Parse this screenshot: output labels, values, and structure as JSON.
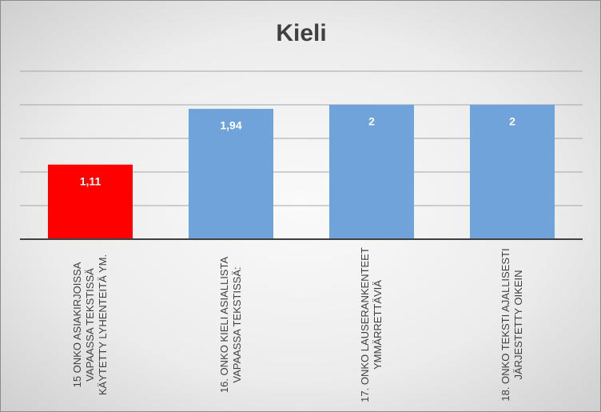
{
  "chart_data": {
    "type": "bar",
    "title": "Kieli",
    "categories": [
      "15 ONKO ASIAKIRJOISSA VAPAASSA TEKSTISSÄ KÄYTETTY LYHENTEITÄ YM.",
      "16. ONKO KIELI ASIALLISTA VAPAASSA TEKSTISSÄ:",
      "17. ONKO LAUSERANKENTEET YMMÄRRETTÄVIÄ",
      "18. ONKO TEKSTI AJALLISESTI JÄRJESTETTY OIKEIN"
    ],
    "values": [
      1.11,
      1.94,
      2,
      2
    ],
    "value_labels": [
      "1,11",
      "1,94",
      "2",
      "2"
    ],
    "colors": [
      "#ff0000",
      "#6fa3da",
      "#6fa3da",
      "#6fa3da"
    ],
    "ylim": [
      0,
      2.5
    ],
    "yticks": [
      0,
      0.5,
      1,
      1.5,
      2,
      2.5
    ],
    "grid": true
  }
}
